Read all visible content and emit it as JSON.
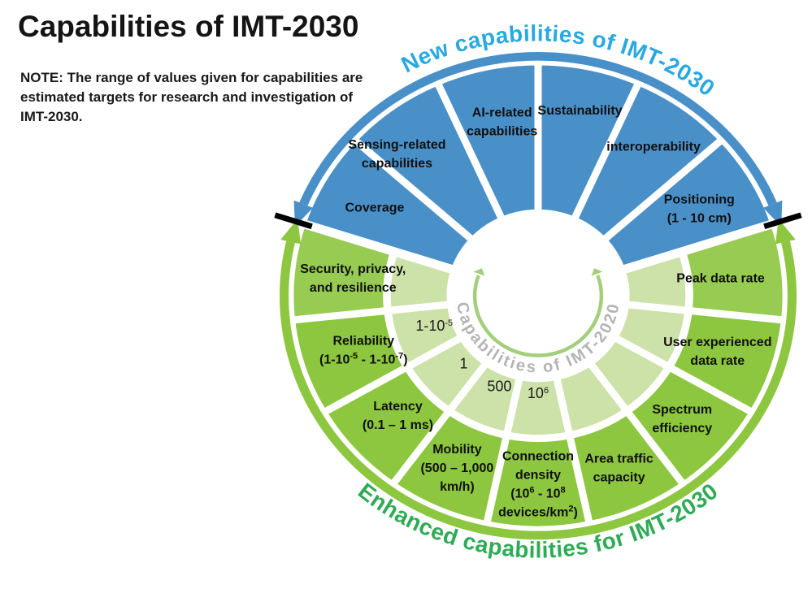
{
  "title": "Capabilities of IMT-2030",
  "note": "NOTE: The range of values given for capabilities are estimated targets for research and investigation of IMT-2030.",
  "chart_data": {
    "type": "wheel-diagram",
    "outer_top_arc_label": "New capabilities of IMT-2030",
    "outer_bottom_arc_label": "Enhanced capabilities for IMT-2030",
    "inner_arc_label": "Capabilities of IMT-2020",
    "new_capabilities": [
      {
        "label": [
          "Coverage"
        ],
        "angle": -150,
        "label_r": 0.73
      },
      {
        "label": [
          "Sensing-related",
          "capabilities"
        ],
        "angle": -126,
        "label_angle": -133,
        "label_r": 0.8
      },
      {
        "label": [
          "AI-related",
          "capabilities"
        ],
        "angle": -102,
        "label_angle": -101,
        "label_r": 0.73
      },
      {
        "label": [
          "Sustainability"
        ],
        "angle": -78,
        "label_r": 0.78
      },
      {
        "label": [
          "interoperability"
        ],
        "angle": -54,
        "label_r": 0.76
      },
      {
        "label": [
          "Positioning",
          "(1 - 10 cm)"
        ],
        "angle": -30,
        "label_r": 0.72
      }
    ],
    "enhanced_capabilities": [
      {
        "label": [
          "Peak data rate"
        ],
        "angle": -6,
        "label_r": 0.71,
        "lighter": true
      },
      {
        "label": [
          "User experienced",
          "data rate"
        ],
        "angle": 18,
        "label_r": 0.73
      },
      {
        "label": [
          "Spectrum",
          "efficiency"
        ],
        "angle": 42,
        "label_r": 0.75
      },
      {
        "label": [
          "Area traffic",
          "capacity"
        ],
        "angle": 66,
        "label_r": 0.77
      },
      {
        "label": [
          "Connection",
          "density",
          "(10^{6} - 10^{8}",
          "devices/km^{2})"
        ],
        "angle": 90,
        "label_r": 0.77
      },
      {
        "label": [
          "Mobility",
          "(500 – 1,000",
          "km/h)"
        ],
        "angle": 114,
        "label_r": 0.77
      },
      {
        "label": [
          "Latency",
          "(0.1 – 1 ms)"
        ],
        "angle": 138,
        "label_r": 0.73
      },
      {
        "label": [
          "Reliability",
          "(1-10^{-5} - 1-10^{-7})"
        ],
        "angle": 162,
        "label_r": 0.71
      },
      {
        "label": [
          "Security, privacy,",
          "and resilience"
        ],
        "angle": 186,
        "label_r": 0.72,
        "lighter": true
      }
    ],
    "imt2020_values": [
      {
        "value": "1-10^{-5}",
        "angle": 163,
        "r": 0.42
      },
      {
        "value": "1",
        "angle": 136,
        "r": 0.4
      },
      {
        "value": "500",
        "angle": 112,
        "r": 0.4
      },
      {
        "value": "10^{6}",
        "angle": 90,
        "r": 0.4
      }
    ],
    "colors": {
      "blue": "#4a90c8",
      "blue_arc_text": "#29a9e1",
      "green": "#8dc63f",
      "green_lighter": "#97cb52",
      "green_arc_text": "#2eac55",
      "inner_ring": "#cde2a8",
      "inner_arrow": "#a4cf7a",
      "inner_arc_text": "#b4b4b4",
      "label_text": "#101010",
      "tick": "#000000",
      "separator": "#ffffff"
    }
  }
}
